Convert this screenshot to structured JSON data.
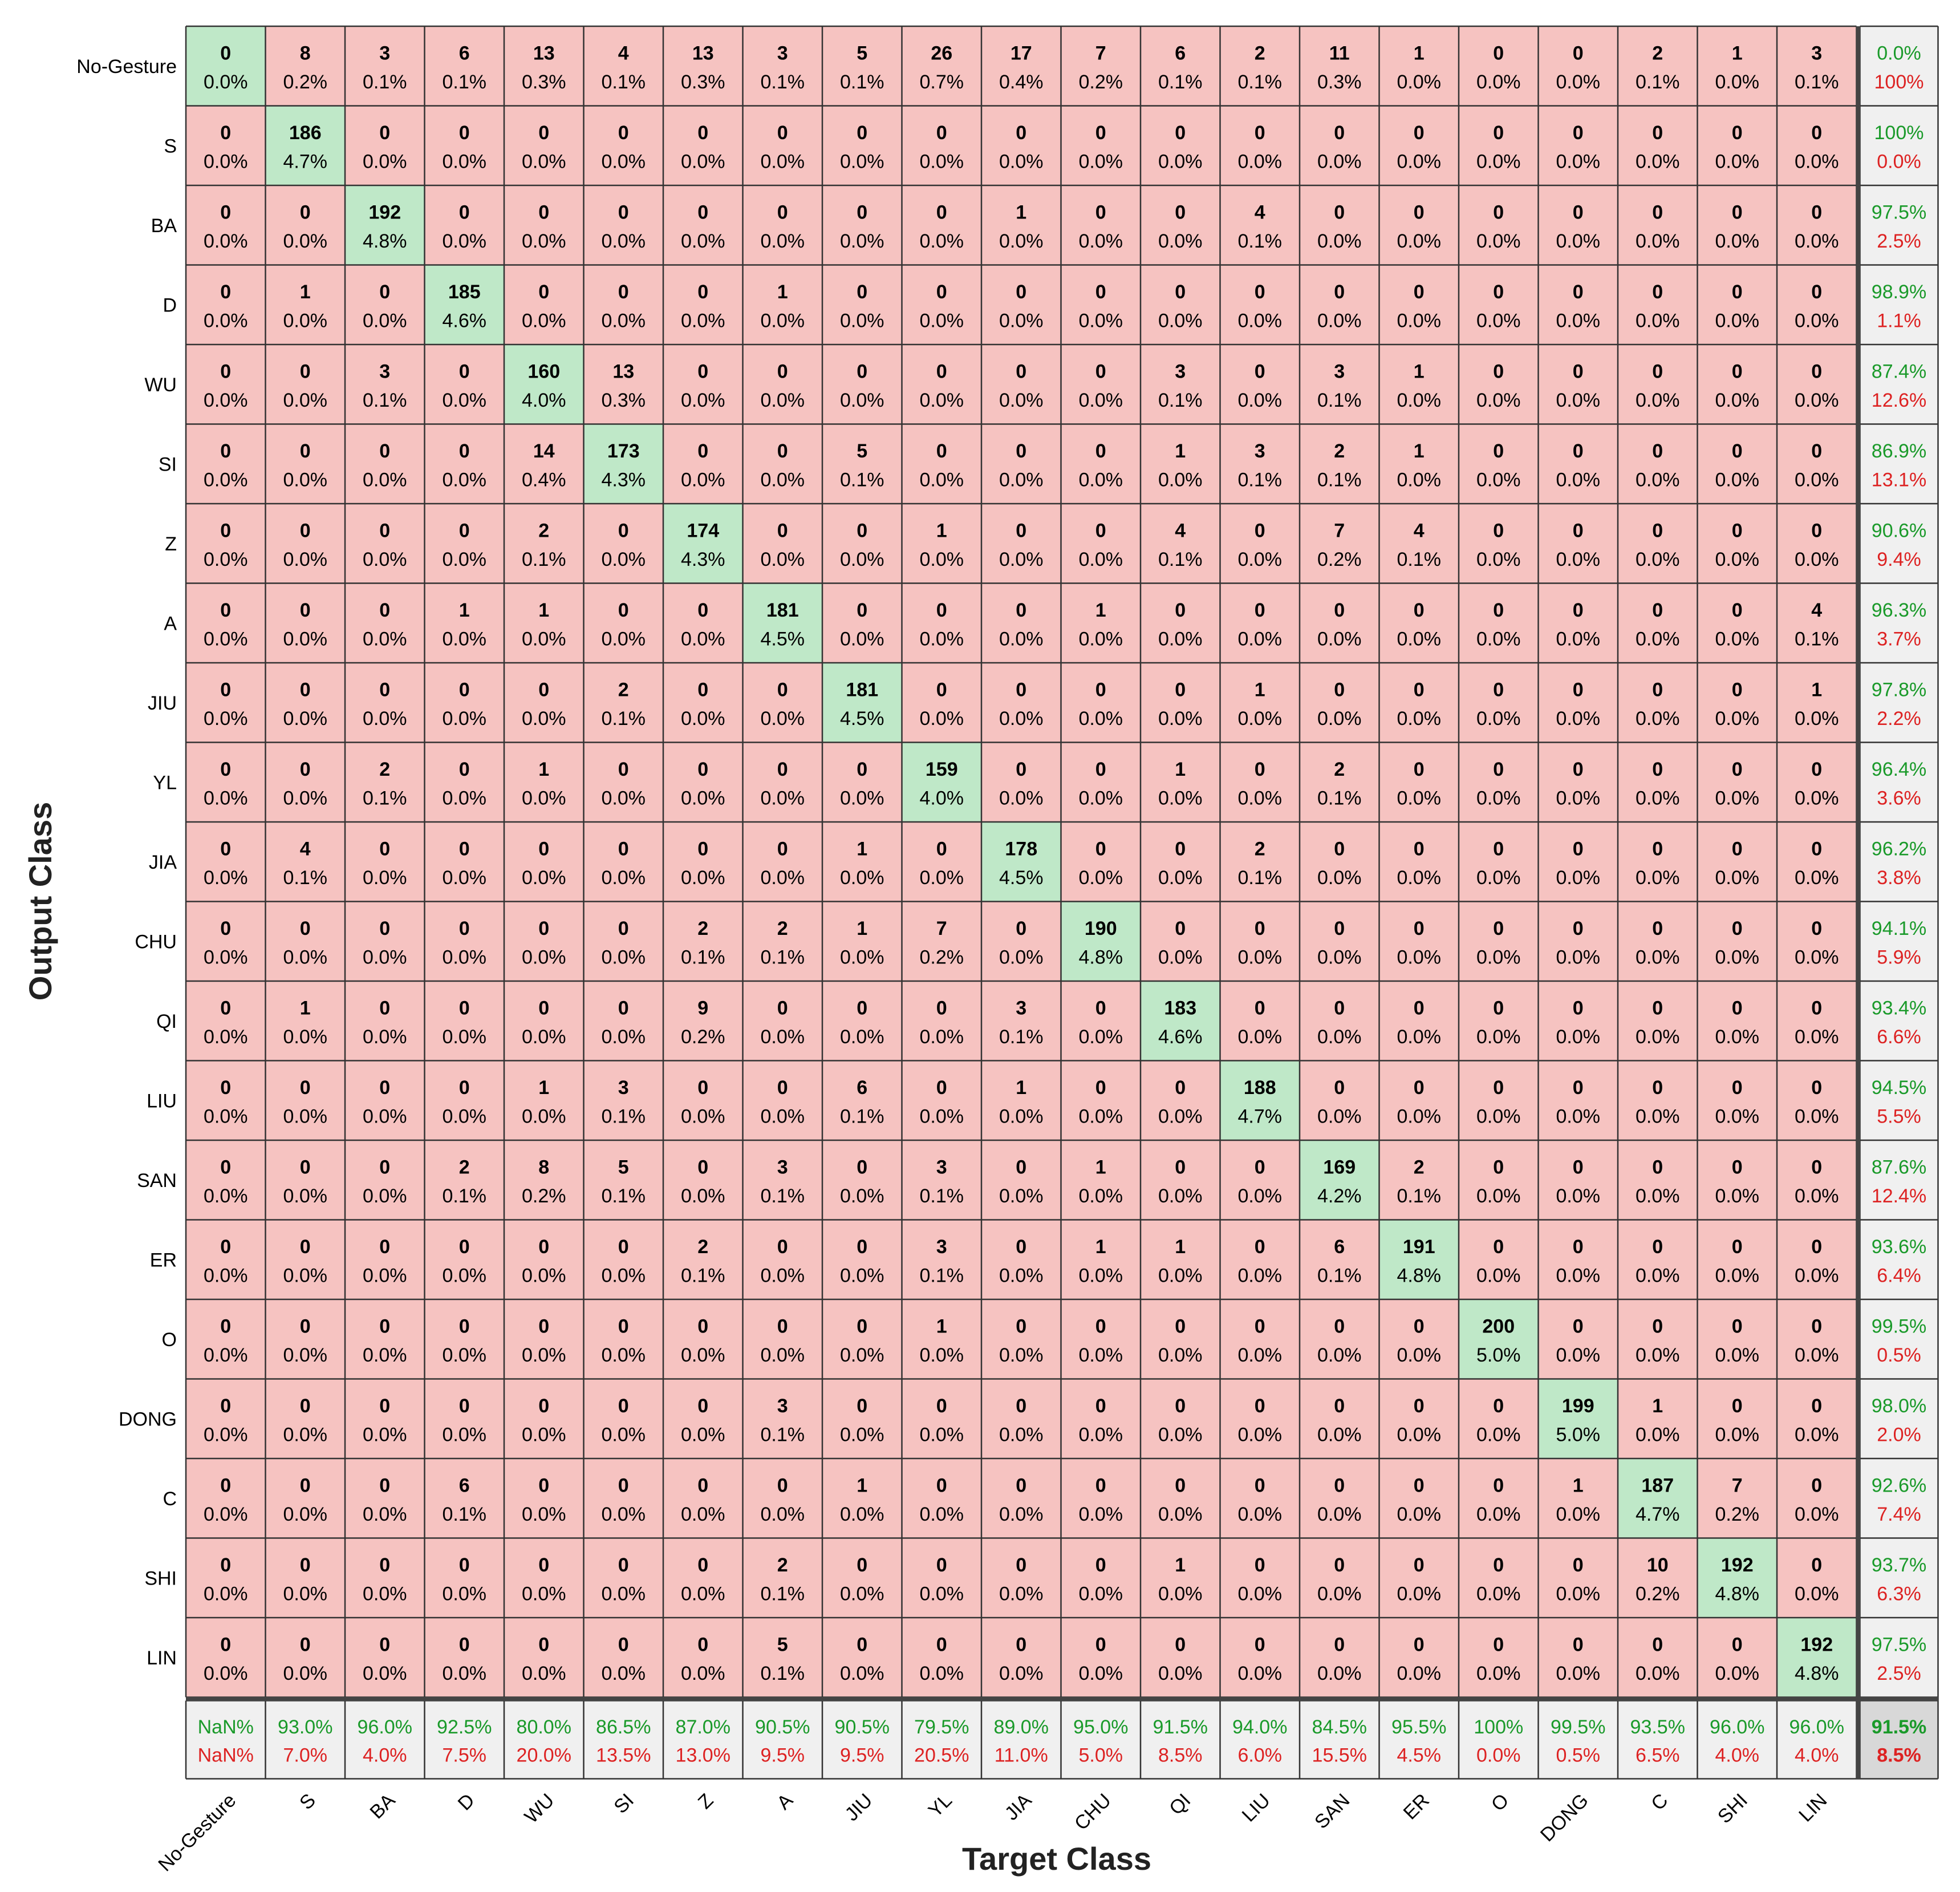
{
  "chart_data": {
    "type": "heatmap",
    "subtype": "confusion-matrix",
    "title": "",
    "xlabel": "Target Class",
    "ylabel": "Output Class",
    "classes": [
      "No-Gesture",
      "S",
      "BA",
      "D",
      "WU",
      "SI",
      "Z",
      "A",
      "JIU",
      "YL",
      "JIA",
      "CHU",
      "QI",
      "LIU",
      "SAN",
      "ER",
      "O",
      "DONG",
      "C",
      "SHI",
      "LIN"
    ],
    "matrix": [
      [
        0,
        8,
        3,
        6,
        13,
        4,
        13,
        3,
        5,
        26,
        17,
        7,
        6,
        2,
        11,
        1,
        0,
        0,
        2,
        1,
        3
      ],
      [
        0,
        186,
        0,
        0,
        0,
        0,
        0,
        0,
        0,
        0,
        0,
        0,
        0,
        0,
        0,
        0,
        0,
        0,
        0,
        0,
        0
      ],
      [
        0,
        0,
        192,
        0,
        0,
        0,
        0,
        0,
        0,
        0,
        1,
        0,
        0,
        4,
        0,
        0,
        0,
        0,
        0,
        0,
        0
      ],
      [
        0,
        1,
        0,
        185,
        0,
        0,
        0,
        1,
        0,
        0,
        0,
        0,
        0,
        0,
        0,
        0,
        0,
        0,
        0,
        0,
        0
      ],
      [
        0,
        0,
        3,
        0,
        160,
        13,
        0,
        0,
        0,
        0,
        0,
        0,
        3,
        0,
        3,
        1,
        0,
        0,
        0,
        0,
        0
      ],
      [
        0,
        0,
        0,
        0,
        14,
        173,
        0,
        0,
        5,
        0,
        0,
        0,
        1,
        3,
        2,
        1,
        0,
        0,
        0,
        0,
        0
      ],
      [
        0,
        0,
        0,
        0,
        2,
        0,
        174,
        0,
        0,
        1,
        0,
        0,
        4,
        0,
        7,
        4,
        0,
        0,
        0,
        0,
        0
      ],
      [
        0,
        0,
        0,
        1,
        1,
        0,
        0,
        181,
        0,
        0,
        0,
        1,
        0,
        0,
        0,
        0,
        0,
        0,
        0,
        0,
        4
      ],
      [
        0,
        0,
        0,
        0,
        0,
        2,
        0,
        0,
        181,
        0,
        0,
        0,
        0,
        1,
        0,
        0,
        0,
        0,
        0,
        0,
        1
      ],
      [
        0,
        0,
        2,
        0,
        1,
        0,
        0,
        0,
        0,
        159,
        0,
        0,
        1,
        0,
        2,
        0,
        0,
        0,
        0,
        0,
        0
      ],
      [
        0,
        4,
        0,
        0,
        0,
        0,
        0,
        0,
        1,
        0,
        178,
        0,
        0,
        2,
        0,
        0,
        0,
        0,
        0,
        0,
        0
      ],
      [
        0,
        0,
        0,
        0,
        0,
        0,
        2,
        2,
        1,
        7,
        0,
        190,
        0,
        0,
        0,
        0,
        0,
        0,
        0,
        0,
        0
      ],
      [
        0,
        1,
        0,
        0,
        0,
        0,
        9,
        0,
        0,
        0,
        3,
        0,
        183,
        0,
        0,
        0,
        0,
        0,
        0,
        0,
        0
      ],
      [
        0,
        0,
        0,
        0,
        1,
        3,
        0,
        0,
        6,
        0,
        1,
        0,
        0,
        188,
        0,
        0,
        0,
        0,
        0,
        0,
        0
      ],
      [
        0,
        0,
        0,
        2,
        8,
        5,
        0,
        3,
        0,
        3,
        0,
        1,
        0,
        0,
        169,
        2,
        0,
        0,
        0,
        0,
        0
      ],
      [
        0,
        0,
        0,
        0,
        0,
        0,
        2,
        0,
        0,
        3,
        0,
        1,
        1,
        0,
        6,
        191,
        0,
        0,
        0,
        0,
        0
      ],
      [
        0,
        0,
        0,
        0,
        0,
        0,
        0,
        0,
        0,
        1,
        0,
        0,
        0,
        0,
        0,
        0,
        200,
        0,
        0,
        0,
        0
      ],
      [
        0,
        0,
        0,
        0,
        0,
        0,
        0,
        3,
        0,
        0,
        0,
        0,
        0,
        0,
        0,
        0,
        0,
        199,
        1,
        0,
        0
      ],
      [
        0,
        0,
        0,
        6,
        0,
        0,
        0,
        0,
        1,
        0,
        0,
        0,
        0,
        0,
        0,
        0,
        0,
        1,
        187,
        7,
        0
      ],
      [
        0,
        0,
        0,
        0,
        0,
        0,
        0,
        2,
        0,
        0,
        0,
        0,
        1,
        0,
        0,
        0,
        0,
        0,
        10,
        192,
        0
      ],
      [
        0,
        0,
        0,
        0,
        0,
        0,
        0,
        5,
        0,
        0,
        0,
        0,
        0,
        0,
        0,
        0,
        0,
        0,
        0,
        0,
        192
      ]
    ],
    "percents": [
      [
        "0.0%",
        "0.2%",
        "0.1%",
        "0.1%",
        "0.3%",
        "0.1%",
        "0.3%",
        "0.1%",
        "0.1%",
        "0.7%",
        "0.4%",
        "0.2%",
        "0.1%",
        "0.1%",
        "0.3%",
        "0.0%",
        "0.0%",
        "0.0%",
        "0.1%",
        "0.0%",
        "0.1%"
      ],
      [
        "0.0%",
        "4.7%",
        "0.0%",
        "0.0%",
        "0.0%",
        "0.0%",
        "0.0%",
        "0.0%",
        "0.0%",
        "0.0%",
        "0.0%",
        "0.0%",
        "0.0%",
        "0.0%",
        "0.0%",
        "0.0%",
        "0.0%",
        "0.0%",
        "0.0%",
        "0.0%",
        "0.0%"
      ],
      [
        "0.0%",
        "0.0%",
        "4.8%",
        "0.0%",
        "0.0%",
        "0.0%",
        "0.0%",
        "0.0%",
        "0.0%",
        "0.0%",
        "0.0%",
        "0.0%",
        "0.0%",
        "0.1%",
        "0.0%",
        "0.0%",
        "0.0%",
        "0.0%",
        "0.0%",
        "0.0%",
        "0.0%"
      ],
      [
        "0.0%",
        "0.0%",
        "0.0%",
        "4.6%",
        "0.0%",
        "0.0%",
        "0.0%",
        "0.0%",
        "0.0%",
        "0.0%",
        "0.0%",
        "0.0%",
        "0.0%",
        "0.0%",
        "0.0%",
        "0.0%",
        "0.0%",
        "0.0%",
        "0.0%",
        "0.0%",
        "0.0%"
      ],
      [
        "0.0%",
        "0.0%",
        "0.1%",
        "0.0%",
        "4.0%",
        "0.3%",
        "0.0%",
        "0.0%",
        "0.0%",
        "0.0%",
        "0.0%",
        "0.0%",
        "0.1%",
        "0.0%",
        "0.1%",
        "0.0%",
        "0.0%",
        "0.0%",
        "0.0%",
        "0.0%",
        "0.0%"
      ],
      [
        "0.0%",
        "0.0%",
        "0.0%",
        "0.0%",
        "0.4%",
        "4.3%",
        "0.0%",
        "0.0%",
        "0.1%",
        "0.0%",
        "0.0%",
        "0.0%",
        "0.0%",
        "0.1%",
        "0.1%",
        "0.0%",
        "0.0%",
        "0.0%",
        "0.0%",
        "0.0%",
        "0.0%"
      ],
      [
        "0.0%",
        "0.0%",
        "0.0%",
        "0.0%",
        "0.1%",
        "0.0%",
        "4.3%",
        "0.0%",
        "0.0%",
        "0.0%",
        "0.0%",
        "0.0%",
        "0.1%",
        "0.0%",
        "0.2%",
        "0.1%",
        "0.0%",
        "0.0%",
        "0.0%",
        "0.0%",
        "0.0%"
      ],
      [
        "0.0%",
        "0.0%",
        "0.0%",
        "0.0%",
        "0.0%",
        "0.0%",
        "0.0%",
        "4.5%",
        "0.0%",
        "0.0%",
        "0.0%",
        "0.0%",
        "0.0%",
        "0.0%",
        "0.0%",
        "0.0%",
        "0.0%",
        "0.0%",
        "0.0%",
        "0.0%",
        "0.1%"
      ],
      [
        "0.0%",
        "0.0%",
        "0.0%",
        "0.0%",
        "0.0%",
        "0.1%",
        "0.0%",
        "0.0%",
        "4.5%",
        "0.0%",
        "0.0%",
        "0.0%",
        "0.0%",
        "0.0%",
        "0.0%",
        "0.0%",
        "0.0%",
        "0.0%",
        "0.0%",
        "0.0%",
        "0.0%"
      ],
      [
        "0.0%",
        "0.0%",
        "0.1%",
        "0.0%",
        "0.0%",
        "0.0%",
        "0.0%",
        "0.0%",
        "0.0%",
        "4.0%",
        "0.0%",
        "0.0%",
        "0.0%",
        "0.0%",
        "0.1%",
        "0.0%",
        "0.0%",
        "0.0%",
        "0.0%",
        "0.0%",
        "0.0%"
      ],
      [
        "0.0%",
        "0.1%",
        "0.0%",
        "0.0%",
        "0.0%",
        "0.0%",
        "0.0%",
        "0.0%",
        "0.0%",
        "0.0%",
        "4.5%",
        "0.0%",
        "0.0%",
        "0.1%",
        "0.0%",
        "0.0%",
        "0.0%",
        "0.0%",
        "0.0%",
        "0.0%",
        "0.0%"
      ],
      [
        "0.0%",
        "0.0%",
        "0.0%",
        "0.0%",
        "0.0%",
        "0.0%",
        "0.1%",
        "0.1%",
        "0.0%",
        "0.2%",
        "0.0%",
        "4.8%",
        "0.0%",
        "0.0%",
        "0.0%",
        "0.0%",
        "0.0%",
        "0.0%",
        "0.0%",
        "0.0%",
        "0.0%"
      ],
      [
        "0.0%",
        "0.0%",
        "0.0%",
        "0.0%",
        "0.0%",
        "0.0%",
        "0.2%",
        "0.0%",
        "0.0%",
        "0.0%",
        "0.1%",
        "0.0%",
        "4.6%",
        "0.0%",
        "0.0%",
        "0.0%",
        "0.0%",
        "0.0%",
        "0.0%",
        "0.0%",
        "0.0%"
      ],
      [
        "0.0%",
        "0.0%",
        "0.0%",
        "0.0%",
        "0.0%",
        "0.1%",
        "0.0%",
        "0.0%",
        "0.1%",
        "0.0%",
        "0.0%",
        "0.0%",
        "0.0%",
        "4.7%",
        "0.0%",
        "0.0%",
        "0.0%",
        "0.0%",
        "0.0%",
        "0.0%",
        "0.0%"
      ],
      [
        "0.0%",
        "0.0%",
        "0.0%",
        "0.1%",
        "0.2%",
        "0.1%",
        "0.0%",
        "0.1%",
        "0.0%",
        "0.1%",
        "0.0%",
        "0.0%",
        "0.0%",
        "0.0%",
        "4.2%",
        "0.1%",
        "0.0%",
        "0.0%",
        "0.0%",
        "0.0%",
        "0.0%"
      ],
      [
        "0.0%",
        "0.0%",
        "0.0%",
        "0.0%",
        "0.0%",
        "0.0%",
        "0.1%",
        "0.0%",
        "0.0%",
        "0.1%",
        "0.0%",
        "0.0%",
        "0.0%",
        "0.0%",
        "0.1%",
        "4.8%",
        "0.0%",
        "0.0%",
        "0.0%",
        "0.0%",
        "0.0%"
      ],
      [
        "0.0%",
        "0.0%",
        "0.0%",
        "0.0%",
        "0.0%",
        "0.0%",
        "0.0%",
        "0.0%",
        "0.0%",
        "0.0%",
        "0.0%",
        "0.0%",
        "0.0%",
        "0.0%",
        "0.0%",
        "0.0%",
        "5.0%",
        "0.0%",
        "0.0%",
        "0.0%",
        "0.0%"
      ],
      [
        "0.0%",
        "0.0%",
        "0.0%",
        "0.0%",
        "0.0%",
        "0.0%",
        "0.0%",
        "0.1%",
        "0.0%",
        "0.0%",
        "0.0%",
        "0.0%",
        "0.0%",
        "0.0%",
        "0.0%",
        "0.0%",
        "0.0%",
        "5.0%",
        "0.0%",
        "0.0%",
        "0.0%"
      ],
      [
        "0.0%",
        "0.0%",
        "0.0%",
        "0.1%",
        "0.0%",
        "0.0%",
        "0.0%",
        "0.0%",
        "0.0%",
        "0.0%",
        "0.0%",
        "0.0%",
        "0.0%",
        "0.0%",
        "0.0%",
        "0.0%",
        "0.0%",
        "0.0%",
        "4.7%",
        "0.2%",
        "0.0%"
      ],
      [
        "0.0%",
        "0.0%",
        "0.0%",
        "0.0%",
        "0.0%",
        "0.0%",
        "0.0%",
        "0.1%",
        "0.0%",
        "0.0%",
        "0.0%",
        "0.0%",
        "0.0%",
        "0.0%",
        "0.0%",
        "0.0%",
        "0.0%",
        "0.0%",
        "0.2%",
        "4.8%",
        "0.0%"
      ],
      [
        "0.0%",
        "0.0%",
        "0.0%",
        "0.0%",
        "0.0%",
        "0.0%",
        "0.0%",
        "0.1%",
        "0.0%",
        "0.0%",
        "0.0%",
        "0.0%",
        "0.0%",
        "0.0%",
        "0.0%",
        "0.0%",
        "0.0%",
        "0.0%",
        "0.0%",
        "0.0%",
        "4.8%"
      ]
    ],
    "row_summary": [
      {
        "correct": "0.0%",
        "error": "100%"
      },
      {
        "correct": "100%",
        "error": "0.0%"
      },
      {
        "correct": "97.5%",
        "error": "2.5%"
      },
      {
        "correct": "98.9%",
        "error": "1.1%"
      },
      {
        "correct": "87.4%",
        "error": "12.6%"
      },
      {
        "correct": "86.9%",
        "error": "13.1%"
      },
      {
        "correct": "90.6%",
        "error": "9.4%"
      },
      {
        "correct": "96.3%",
        "error": "3.7%"
      },
      {
        "correct": "97.8%",
        "error": "2.2%"
      },
      {
        "correct": "96.4%",
        "error": "3.6%"
      },
      {
        "correct": "96.2%",
        "error": "3.8%"
      },
      {
        "correct": "94.1%",
        "error": "5.9%"
      },
      {
        "correct": "93.4%",
        "error": "6.6%"
      },
      {
        "correct": "94.5%",
        "error": "5.5%"
      },
      {
        "correct": "87.6%",
        "error": "12.4%"
      },
      {
        "correct": "93.6%",
        "error": "6.4%"
      },
      {
        "correct": "99.5%",
        "error": "0.5%"
      },
      {
        "correct": "98.0%",
        "error": "2.0%"
      },
      {
        "correct": "92.6%",
        "error": "7.4%"
      },
      {
        "correct": "93.7%",
        "error": "6.3%"
      },
      {
        "correct": "97.5%",
        "error": "2.5%"
      }
    ],
    "col_summary": [
      {
        "correct": "NaN%",
        "error": "NaN%"
      },
      {
        "correct": "93.0%",
        "error": "7.0%"
      },
      {
        "correct": "96.0%",
        "error": "4.0%"
      },
      {
        "correct": "92.5%",
        "error": "7.5%"
      },
      {
        "correct": "80.0%",
        "error": "20.0%"
      },
      {
        "correct": "86.5%",
        "error": "13.5%"
      },
      {
        "correct": "87.0%",
        "error": "13.0%"
      },
      {
        "correct": "90.5%",
        "error": "9.5%"
      },
      {
        "correct": "90.5%",
        "error": "9.5%"
      },
      {
        "correct": "79.5%",
        "error": "20.5%"
      },
      {
        "correct": "89.0%",
        "error": "11.0%"
      },
      {
        "correct": "95.0%",
        "error": "5.0%"
      },
      {
        "correct": "91.5%",
        "error": "8.5%"
      },
      {
        "correct": "94.0%",
        "error": "6.0%"
      },
      {
        "correct": "84.5%",
        "error": "15.5%"
      },
      {
        "correct": "95.5%",
        "error": "4.5%"
      },
      {
        "correct": "100%",
        "error": "0.0%"
      },
      {
        "correct": "99.5%",
        "error": "0.5%"
      },
      {
        "correct": "93.5%",
        "error": "6.5%"
      },
      {
        "correct": "96.0%",
        "error": "4.0%"
      },
      {
        "correct": "96.0%",
        "error": "4.0%"
      }
    ],
    "overall": {
      "correct": "91.5%",
      "error": "8.5%"
    },
    "colors": {
      "diagonal": "#bfe8c8",
      "off_diagonal": "#f6c3c1",
      "summary": "#f0f0f0",
      "overall": "#d8d8d8",
      "correct_text": "#1a9a2a",
      "error_text": "#dd2222",
      "grid": "#333333"
    }
  }
}
